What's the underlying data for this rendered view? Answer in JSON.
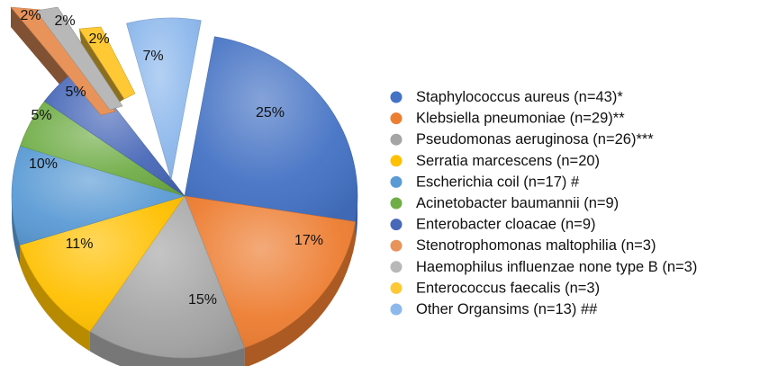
{
  "chart_data": {
    "type": "pie",
    "title": "",
    "slices": [
      {
        "label": "Staphylococcus aureus (n=43)*",
        "value": 25,
        "percent_label": "25%",
        "color": "#4472c4",
        "exploded": false
      },
      {
        "label": "Klebsiella pneumoniae (n=29)**",
        "value": 17,
        "percent_label": "17%",
        "color": "#ed7d31",
        "exploded": false
      },
      {
        "label": "Pseudomonas aeruginosa (n=26)***",
        "value": 15,
        "percent_label": "15%",
        "color": "#a5a5a5",
        "exploded": false
      },
      {
        "label": "Serratia marcescens (n=20)",
        "value": 11,
        "percent_label": "11%",
        "color": "#ffc000",
        "exploded": false
      },
      {
        "label": "Escherichia coil (n=17) #",
        "value": 10,
        "percent_label": "10%",
        "color": "#5b9bd5",
        "exploded": false
      },
      {
        "label": "Acinetobacter baumannii (n=9)",
        "value": 5,
        "percent_label": "5%",
        "color": "#70ad47",
        "exploded": false
      },
      {
        "label": "Enterobacter cloacae (n=9)",
        "value": 5,
        "percent_label": "5%",
        "color": "#4868b8",
        "exploded": false
      },
      {
        "label": "Stenotrophomonas maltophilia (n=3)",
        "value": 2,
        "percent_label": "2%",
        "color": "#e8935a",
        "exploded": true
      },
      {
        "label": "Haemophilus influenzae none type B (n=3)",
        "value": 2,
        "percent_label": "2%",
        "color": "#b8b8b8",
        "exploded": true
      },
      {
        "label": "Enterococcus faecalis (n=3)",
        "value": 2,
        "percent_label": "2%",
        "color": "#ffc936",
        "exploded": true
      },
      {
        "label": "Other Organsims (n=13) ##",
        "value": 7,
        "percent_label": "7%",
        "color": "#8db8ec",
        "exploded": true
      }
    ],
    "legend_position": "right",
    "style": "3d-exploded-pie"
  }
}
